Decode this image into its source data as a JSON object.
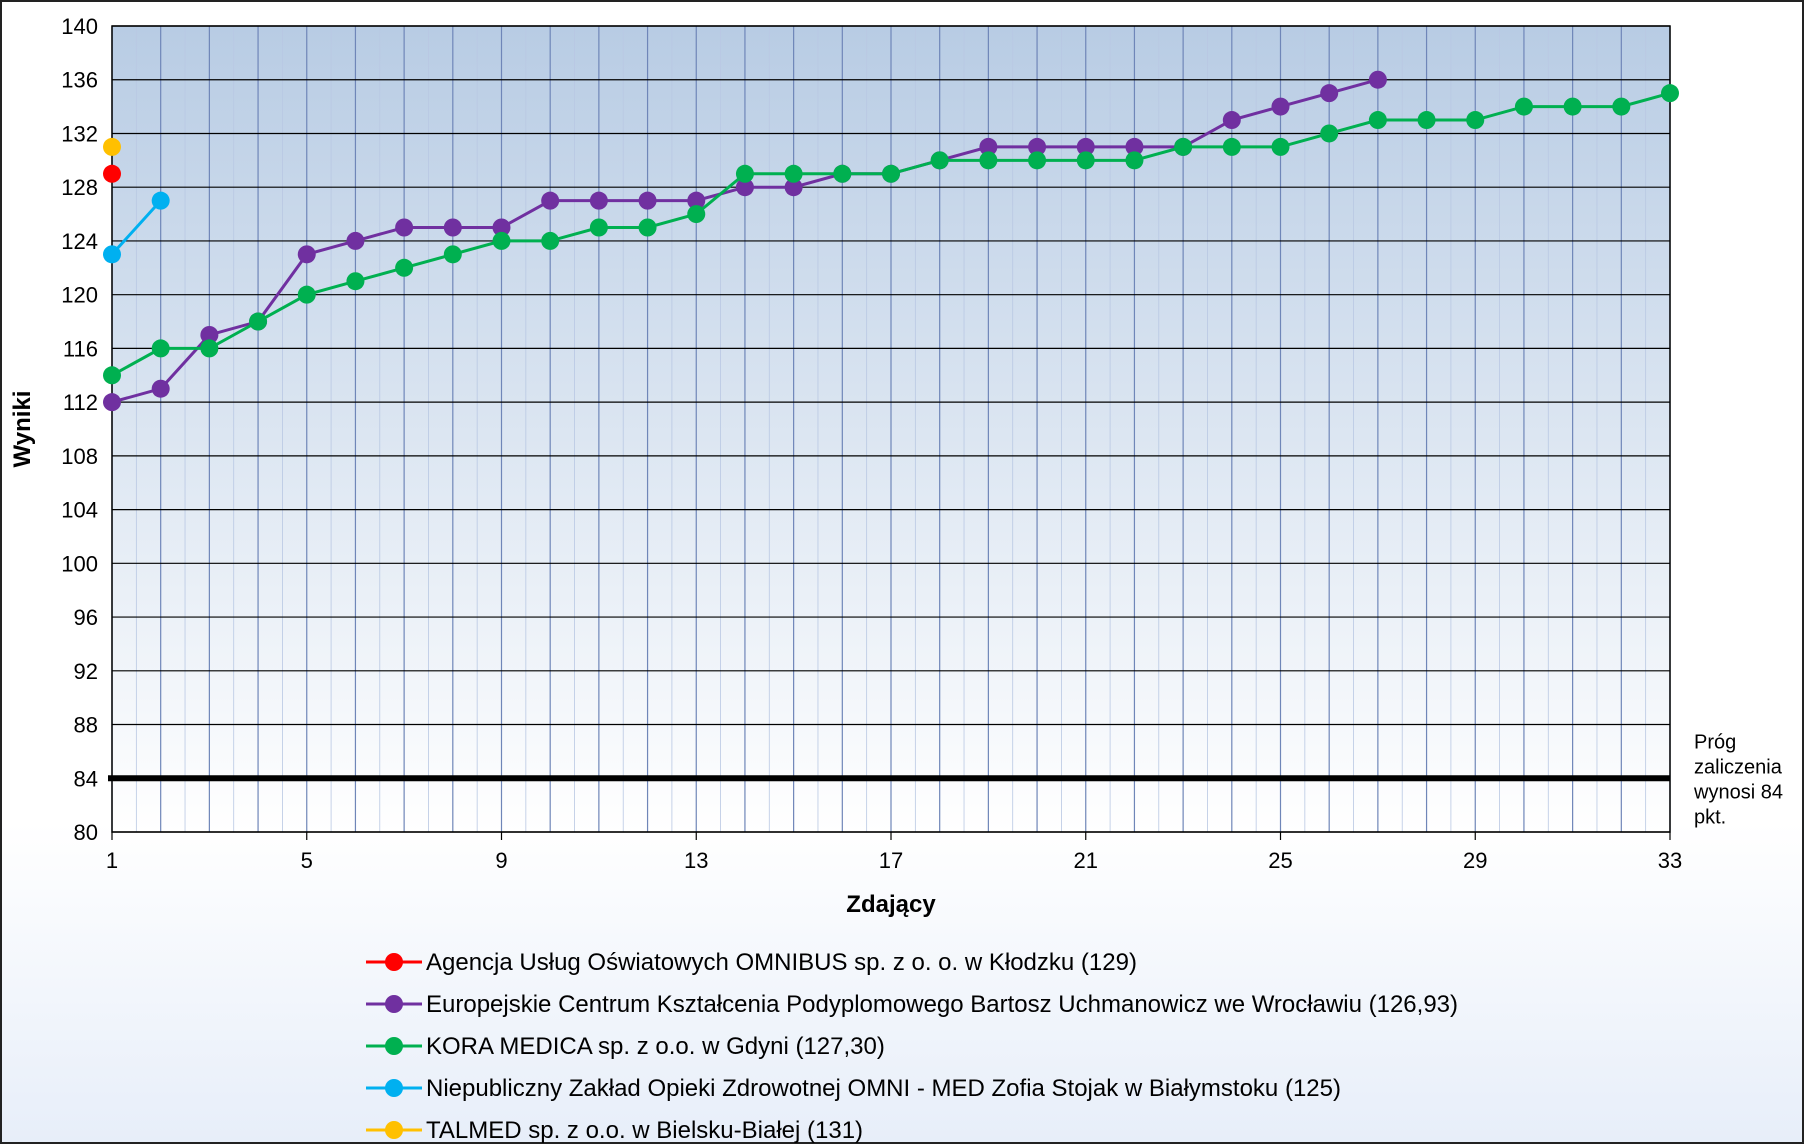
{
  "chart_data": {
    "type": "line",
    "xlabel": "Zdający",
    "ylabel": "Wyniki",
    "xlim": [
      1,
      33
    ],
    "ylim": [
      80,
      140
    ],
    "x_ticks": [
      1,
      5,
      9,
      13,
      17,
      21,
      25,
      29,
      33
    ],
    "y_ticks": [
      80,
      84,
      88,
      92,
      96,
      100,
      104,
      108,
      112,
      116,
      120,
      124,
      128,
      132,
      136,
      140
    ],
    "x_tick_labels": [
      "1",
      "5",
      "9",
      "13",
      "17",
      "21",
      "25",
      "29",
      "33"
    ],
    "y_tick_labels": [
      "80",
      "84",
      "88",
      "92",
      "96",
      "100",
      "104",
      "108",
      "112",
      "116",
      "120",
      "124",
      "128",
      "132",
      "136",
      "140"
    ],
    "grid": true,
    "legend_position": "bottom",
    "threshold": {
      "value": 84,
      "label_lines": [
        "Próg",
        "zaliczenia",
        "wynosi 84",
        "pkt."
      ]
    },
    "series": [
      {
        "name": "Agencja Usług Oświatowych OMNIBUS sp. z o. o. w Kłodzku (129)",
        "color": "#ff0000",
        "x": [
          1
        ],
        "values": [
          129
        ]
      },
      {
        "name": "Europejskie Centrum Kształcenia Podyplomowego Bartosz Uchmanowicz we Wrocławiu (126,93)",
        "color": "#7030a0",
        "x": [
          1,
          2,
          3,
          4,
          5,
          6,
          7,
          8,
          9,
          10,
          11,
          12,
          13,
          14,
          15,
          16,
          17,
          18,
          19,
          20,
          21,
          22,
          23,
          24,
          25,
          26,
          27
        ],
        "values": [
          112,
          113,
          117,
          118,
          123,
          124,
          125,
          125,
          125,
          127,
          127,
          127,
          127,
          128,
          128,
          129,
          129,
          130,
          131,
          131,
          131,
          131,
          131,
          133,
          134,
          135,
          136
        ]
      },
      {
        "name": "KORA MEDICA sp. z o.o. w Gdyni (127,30)",
        "color": "#00b050",
        "x": [
          1,
          2,
          3,
          4,
          5,
          6,
          7,
          8,
          9,
          10,
          11,
          12,
          13,
          14,
          15,
          16,
          17,
          18,
          19,
          20,
          21,
          22,
          23,
          24,
          25,
          26,
          27,
          28,
          29,
          30,
          31,
          32,
          33
        ],
        "values": [
          114,
          116,
          116,
          118,
          120,
          121,
          122,
          123,
          124,
          124,
          125,
          125,
          126,
          129,
          129,
          129,
          129,
          130,
          130,
          130,
          130,
          130,
          131,
          131,
          131,
          132,
          133,
          133,
          133,
          134,
          134,
          134,
          135
        ]
      },
      {
        "name": "Niepubliczny Zakład Opieki Zdrowotnej OMNI - MED Zofia Stojak w Białymstoku (125)",
        "color": "#00b0f0",
        "x": [
          1,
          2
        ],
        "values": [
          123,
          127
        ]
      },
      {
        "name": "TALMED sp. z o.o. w Bielsku-Białej (131)",
        "color": "#ffc000",
        "x": [
          1
        ],
        "values": [
          131
        ]
      }
    ]
  }
}
